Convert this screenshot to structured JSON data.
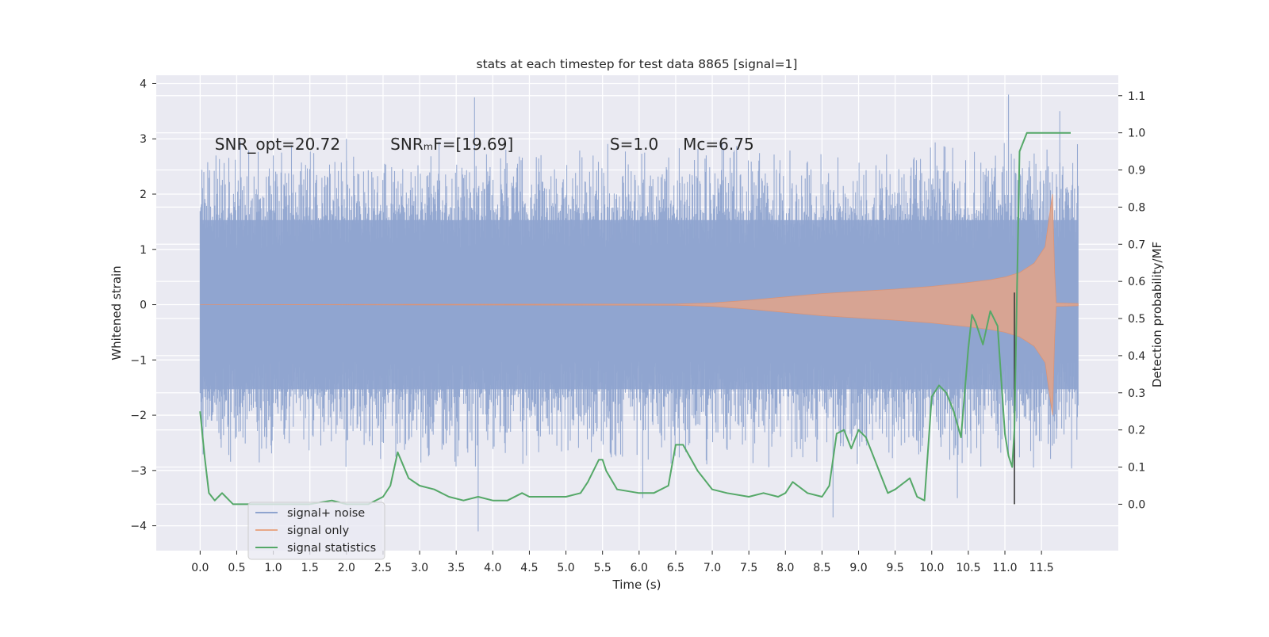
{
  "chart_data": {
    "type": "line",
    "title": "stats at each timestep for test data 8865 [signal=1]",
    "xlabel": "Time (s)",
    "ylabel_left": "Whitened strain",
    "ylabel_right": "Detection probability/MF",
    "xlim": [
      -0.6,
      12.55
    ],
    "ylim_left": [
      -4.45,
      4.15
    ],
    "ylim_right": [
      -0.125,
      1.155
    ],
    "x_ticks": [
      0.0,
      0.5,
      1.0,
      1.5,
      2.0,
      2.5,
      3.0,
      3.5,
      4.0,
      4.5,
      5.0,
      5.5,
      6.0,
      6.5,
      7.0,
      7.5,
      8.0,
      8.5,
      9.0,
      9.5,
      10.0,
      10.5,
      11.0,
      11.5
    ],
    "x_tick_labels": [
      "0.0",
      "0.5",
      "1.0",
      "1.5",
      "2.0",
      "2.5",
      "3.0",
      "3.5",
      "4.0",
      "4.5",
      "5.0",
      "5.5",
      "6.0",
      "6.5",
      "7.0",
      "7.5",
      "8.0",
      "8.5",
      "9.0",
      "9.5",
      "10.0",
      "10.5",
      "11.0",
      "11.5"
    ],
    "y_ticks_left": [
      4,
      3,
      2,
      1,
      0,
      -1,
      -2,
      -3,
      -4
    ],
    "y_tick_labels_left": [
      "4",
      "3",
      "2",
      "1",
      "0",
      "−1",
      "−2",
      "−3",
      "−4"
    ],
    "y_ticks_right": [
      1.1,
      1.0,
      0.9,
      0.8,
      0.7,
      0.6,
      0.5,
      0.4,
      0.3,
      0.2,
      0.1,
      0.0
    ],
    "y_tick_labels_right": [
      "1.1",
      "1.0",
      "0.9",
      "0.8",
      "0.7",
      "0.6",
      "0.5",
      "0.4",
      "0.3",
      "0.2",
      "0.1",
      "0.0"
    ],
    "annotations": [
      {
        "text": "SNR_opt=20.72",
        "x": 0.2,
        "y": 2.9
      },
      {
        "text": "SNRₘF=[19.69]",
        "x": 2.6,
        "y": 2.9
      },
      {
        "text": "S=1.0",
        "x": 5.6,
        "y": 2.9
      },
      {
        "text": "Mc=6.75",
        "x": 6.6,
        "y": 2.9
      }
    ],
    "legend_position": "lower-left",
    "series": [
      {
        "name": "signal+ noise",
        "axis": "left",
        "color": "#8fa4cf",
        "kind": "noise_band",
        "x_range": [
          0.0,
          12.0
        ],
        "typical_amplitude": 1.7,
        "peak_values": [
          {
            "x": 0.05,
            "y": 2.4
          },
          {
            "x": 0.55,
            "y": 2.95
          },
          {
            "x": 1.0,
            "y": 2.7
          },
          {
            "x": 2.0,
            "y": 3.0
          },
          {
            "x": 3.75,
            "y": 3.75
          },
          {
            "x": 3.8,
            "y": -4.1
          },
          {
            "x": 6.05,
            "y": -3.5
          },
          {
            "x": 8.65,
            "y": -3.85
          },
          {
            "x": 10.35,
            "y": -3.5
          },
          {
            "x": 11.05,
            "y": 3.8
          },
          {
            "x": 11.75,
            "y": 3.5
          }
        ]
      },
      {
        "name": "signal only",
        "axis": "left",
        "color": "#dd8452",
        "kind": "chirp_envelope",
        "x": [
          0.0,
          6.5,
          7.0,
          7.5,
          8.0,
          8.5,
          9.0,
          9.5,
          10.0,
          10.5,
          10.8,
          11.0,
          11.2,
          11.4,
          11.55,
          11.65,
          11.68,
          11.7,
          12.0
        ],
        "envelope": [
          0.0,
          0.01,
          0.03,
          0.08,
          0.14,
          0.2,
          0.24,
          0.28,
          0.33,
          0.4,
          0.45,
          0.5,
          0.58,
          0.75,
          1.05,
          2.0,
          0.6,
          0.03,
          0.02
        ]
      },
      {
        "name": "signal statistics",
        "axis": "right",
        "color": "#55a868",
        "x": [
          0.0,
          0.06,
          0.12,
          0.2,
          0.25,
          0.3,
          0.35,
          0.4,
          0.45,
          0.5,
          0.7,
          1.0,
          1.5,
          1.8,
          2.0,
          2.3,
          2.5,
          2.6,
          2.7,
          2.85,
          3.0,
          3.2,
          3.4,
          3.6,
          3.8,
          4.0,
          4.2,
          4.4,
          4.5,
          4.6,
          4.8,
          5.0,
          5.2,
          5.3,
          5.45,
          5.5,
          5.55,
          5.7,
          6.0,
          6.2,
          6.4,
          6.5,
          6.6,
          6.8,
          7.0,
          7.2,
          7.5,
          7.7,
          7.9,
          8.0,
          8.1,
          8.3,
          8.5,
          8.6,
          8.7,
          8.8,
          8.9,
          9.0,
          9.1,
          9.3,
          9.4,
          9.5,
          9.7,
          9.8,
          9.9,
          10.0,
          10.1,
          10.2,
          10.3,
          10.4,
          10.5,
          10.55,
          10.6,
          10.7,
          10.8,
          10.9,
          11.0,
          11.05,
          11.1,
          11.13,
          11.2,
          11.3,
          11.4,
          11.6,
          11.9
        ],
        "values": [
          0.25,
          0.13,
          0.03,
          0.01,
          0.02,
          0.03,
          0.02,
          0.01,
          0.0,
          0.0,
          0.0,
          0.0,
          0.0,
          0.01,
          0.0,
          0.0,
          0.02,
          0.05,
          0.14,
          0.07,
          0.05,
          0.04,
          0.02,
          0.01,
          0.02,
          0.01,
          0.01,
          0.03,
          0.02,
          0.02,
          0.02,
          0.02,
          0.03,
          0.06,
          0.12,
          0.12,
          0.09,
          0.04,
          0.03,
          0.03,
          0.05,
          0.16,
          0.16,
          0.09,
          0.04,
          0.03,
          0.02,
          0.03,
          0.02,
          0.03,
          0.06,
          0.03,
          0.02,
          0.05,
          0.19,
          0.2,
          0.15,
          0.2,
          0.18,
          0.08,
          0.03,
          0.04,
          0.07,
          0.02,
          0.01,
          0.29,
          0.32,
          0.3,
          0.25,
          0.18,
          0.42,
          0.51,
          0.49,
          0.43,
          0.52,
          0.48,
          0.19,
          0.13,
          0.1,
          0.2,
          0.95,
          1.0,
          1.0,
          1.0,
          1.0
        ]
      }
    ],
    "threshold_marker": {
      "x": 11.13,
      "y_top": 0.57,
      "y_bottom": 0.0
    }
  }
}
